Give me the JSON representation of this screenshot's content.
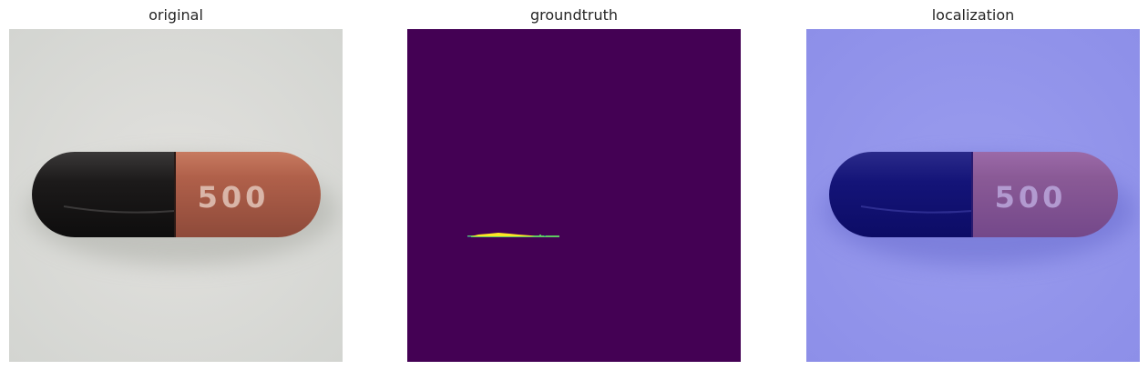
{
  "titles": {
    "original": "original",
    "groundtruth": "groundtruth",
    "localization": "localization"
  },
  "capsule": {
    "imprint": "500",
    "colors": {
      "background": "#dcdcd8",
      "dark_half": "#1c1a1a",
      "orange_half": "#b0604a",
      "imprint": "#d9b5a8"
    }
  },
  "groundtruth": {
    "colors": {
      "background": "#440154",
      "defect_high": "#fde725",
      "defect_mid": "#5ec962",
      "defect_edge": "#3b528b"
    }
  },
  "localization": {
    "colors": {
      "overlay": "#6a6cf0"
    }
  }
}
